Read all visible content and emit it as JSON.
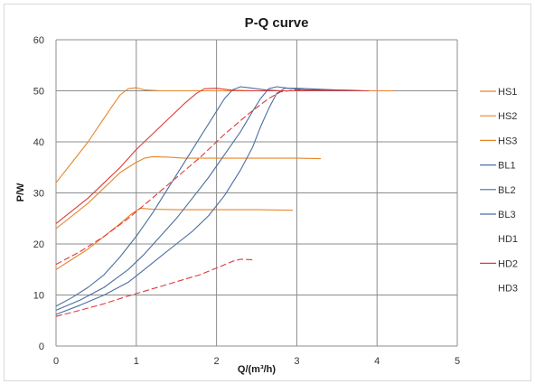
{
  "chart_data": {
    "type": "line",
    "title": "P-Q  curve",
    "xlabel": "Q/(m³/h)",
    "ylabel": "P/W",
    "xlim": [
      0,
      5
    ],
    "ylim": [
      0,
      60
    ],
    "xticks": [
      "0",
      "1",
      "2",
      "3",
      "4",
      "5"
    ],
    "yticks": [
      "0",
      "10",
      "20",
      "30",
      "40",
      "50",
      "60"
    ],
    "grid": true,
    "legend_position": "right",
    "series": [
      {
        "name": "HS1",
        "color": "#e8862a",
        "dash": "solid",
        "points": [
          [
            0,
            32
          ],
          [
            0.2,
            36
          ],
          [
            0.4,
            40
          ],
          [
            0.55,
            43.5
          ],
          [
            0.7,
            47
          ],
          [
            0.8,
            49.2
          ],
          [
            0.9,
            50.4
          ],
          [
            1.0,
            50.6
          ],
          [
            1.1,
            50.2
          ],
          [
            1.3,
            50
          ],
          [
            1.6,
            50
          ],
          [
            2.0,
            50
          ],
          [
            2.5,
            50
          ],
          [
            3.0,
            50
          ],
          [
            3.5,
            50
          ],
          [
            4.0,
            50
          ],
          [
            4.2,
            50
          ]
        ]
      },
      {
        "name": "HS2",
        "color": "#e8862a",
        "dash": "solid",
        "points": [
          [
            0,
            23
          ],
          [
            0.2,
            25.5
          ],
          [
            0.4,
            28
          ],
          [
            0.6,
            31
          ],
          [
            0.8,
            34
          ],
          [
            1.0,
            36
          ],
          [
            1.1,
            36.8
          ],
          [
            1.2,
            37.1
          ],
          [
            1.4,
            37
          ],
          [
            1.6,
            36.8
          ],
          [
            2.0,
            36.8
          ],
          [
            2.5,
            36.8
          ],
          [
            3.0,
            36.8
          ],
          [
            3.3,
            36.7
          ]
        ]
      },
      {
        "name": "HS3",
        "color": "#e8862a",
        "dash": "solid",
        "points": [
          [
            0,
            15
          ],
          [
            0.2,
            17
          ],
          [
            0.4,
            19
          ],
          [
            0.6,
            21.5
          ],
          [
            0.8,
            24
          ],
          [
            0.95,
            26
          ],
          [
            1.05,
            27
          ],
          [
            1.2,
            26.8
          ],
          [
            1.5,
            26.7
          ],
          [
            2.0,
            26.7
          ],
          [
            2.5,
            26.7
          ],
          [
            2.95,
            26.6
          ]
        ]
      },
      {
        "name": "BL1",
        "color": "#4a6fa0",
        "dash": "solid",
        "points": [
          [
            0,
            7.8
          ],
          [
            0.2,
            9.5
          ],
          [
            0.4,
            11.5
          ],
          [
            0.6,
            14
          ],
          [
            0.8,
            17.5
          ],
          [
            1.0,
            21.5
          ],
          [
            1.2,
            26
          ],
          [
            1.4,
            31
          ],
          [
            1.6,
            36
          ],
          [
            1.8,
            41
          ],
          [
            2.0,
            46
          ],
          [
            2.1,
            48.5
          ],
          [
            2.2,
            50.2
          ],
          [
            2.3,
            50.8
          ],
          [
            2.4,
            50.6
          ],
          [
            2.6,
            50.2
          ],
          [
            2.8,
            50
          ],
          [
            3.0,
            50
          ],
          [
            3.5,
            50
          ],
          [
            3.8,
            50
          ]
        ]
      },
      {
        "name": "BL2",
        "color": "#4a6fa0",
        "dash": "solid",
        "points": [
          [
            0,
            7
          ],
          [
            0.3,
            9
          ],
          [
            0.6,
            11.5
          ],
          [
            0.9,
            15
          ],
          [
            1.1,
            18
          ],
          [
            1.3,
            21.5
          ],
          [
            1.5,
            25
          ],
          [
            1.7,
            29
          ],
          [
            1.9,
            33
          ],
          [
            2.1,
            37.5
          ],
          [
            2.3,
            42
          ],
          [
            2.45,
            46
          ],
          [
            2.55,
            48.5
          ],
          [
            2.65,
            50.4
          ],
          [
            2.75,
            50.8
          ],
          [
            2.9,
            50.5
          ],
          [
            3.1,
            50.2
          ],
          [
            3.4,
            50.2
          ],
          [
            3.7,
            50.1
          ],
          [
            3.85,
            50
          ]
        ]
      },
      {
        "name": "BL3",
        "color": "#4a6fa0",
        "dash": "solid",
        "points": [
          [
            0,
            6.2
          ],
          [
            0.3,
            8
          ],
          [
            0.6,
            10
          ],
          [
            0.9,
            12.5
          ],
          [
            1.1,
            15
          ],
          [
            1.3,
            17.5
          ],
          [
            1.5,
            20
          ],
          [
            1.7,
            22.5
          ],
          [
            1.9,
            25.5
          ],
          [
            2.1,
            29.5
          ],
          [
            2.3,
            34.5
          ],
          [
            2.45,
            39
          ],
          [
            2.55,
            43
          ],
          [
            2.65,
            46.5
          ],
          [
            2.75,
            49.5
          ],
          [
            2.85,
            50.5
          ],
          [
            3.0,
            50.5
          ],
          [
            3.3,
            50.3
          ],
          [
            3.6,
            50.1
          ],
          [
            3.85,
            50
          ]
        ]
      },
      {
        "name": "HD1",
        "color": "#e03a3a",
        "dash": "solid",
        "points": [
          [
            0,
            24
          ],
          [
            0.2,
            26.5
          ],
          [
            0.4,
            29
          ],
          [
            0.6,
            32
          ],
          [
            0.8,
            35
          ],
          [
            1.0,
            38.5
          ],
          [
            1.2,
            41.5
          ],
          [
            1.4,
            44.5
          ],
          [
            1.6,
            47.5
          ],
          [
            1.75,
            49.5
          ],
          [
            1.85,
            50.4
          ],
          [
            2.0,
            50.5
          ],
          [
            2.2,
            50.1
          ],
          [
            2.5,
            50
          ],
          [
            3.0,
            50
          ],
          [
            3.5,
            50
          ],
          [
            3.9,
            50
          ]
        ]
      },
      {
        "name": "HD2",
        "color": "#e03a3a",
        "dash": "dashed",
        "points": [
          [
            0,
            16
          ],
          [
            0.3,
            18.5
          ],
          [
            0.6,
            21.5
          ],
          [
            0.9,
            25
          ],
          [
            1.2,
            29
          ],
          [
            1.5,
            33
          ],
          [
            1.8,
            37
          ],
          [
            2.1,
            41.5
          ],
          [
            2.4,
            45.5
          ],
          [
            2.65,
            48.5
          ],
          [
            2.8,
            49.8
          ],
          [
            3.0,
            50.2
          ],
          [
            3.3,
            50
          ],
          [
            3.6,
            50
          ],
          [
            3.9,
            50
          ]
        ]
      },
      {
        "name": "HD3",
        "color": "#e03a3a",
        "dash": "dashed",
        "points": [
          [
            0,
            5.8
          ],
          [
            0.3,
            7
          ],
          [
            0.6,
            8.3
          ],
          [
            0.9,
            9.8
          ],
          [
            1.2,
            11.2
          ],
          [
            1.5,
            12.6
          ],
          [
            1.8,
            14
          ],
          [
            2.05,
            15.6
          ],
          [
            2.2,
            16.6
          ],
          [
            2.3,
            17
          ],
          [
            2.45,
            16.9
          ]
        ]
      }
    ]
  }
}
